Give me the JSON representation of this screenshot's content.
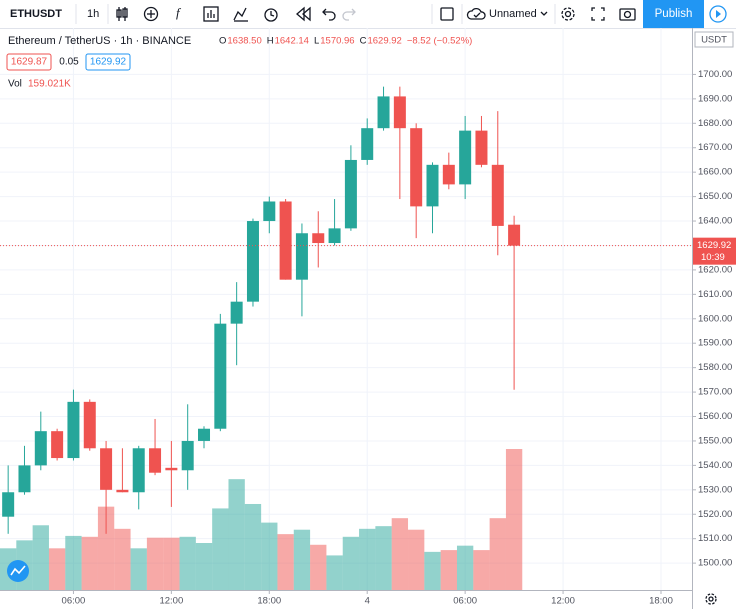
{
  "toolbar": {
    "symbol": "ETHUSDT",
    "interval": "1h",
    "layout_name": "Unnamed",
    "publish": "Publish"
  },
  "header": {
    "title": "Ethereum / TetherUS · 1h · BINANCE",
    "readout": [
      {
        "label": "O",
        "value": "1638.50"
      },
      {
        "label": "H",
        "value": "1642.14"
      },
      {
        "label": "L",
        "value": "1570.96"
      },
      {
        "label": "C",
        "value": "1629.92"
      }
    ],
    "change": "−8.52 (−0.52%)",
    "bid": "1629.87",
    "spread": "0.05",
    "ask": "1629.92",
    "volume_label": "Vol",
    "volume_value": "159.021K"
  },
  "chart_data": {
    "type": "candlestick",
    "currency": "USDT",
    "x": [
      2,
      3,
      4,
      5,
      6,
      7,
      8,
      9,
      10,
      11,
      12,
      13,
      14,
      15,
      16,
      17,
      18,
      19,
      20,
      21,
      22,
      23,
      24,
      25,
      26,
      27,
      28,
      29,
      30,
      31,
      32,
      33
    ],
    "open": [
      1519,
      1529,
      1540,
      1554,
      1543,
      1566,
      1547,
      1530,
      1529,
      1547,
      1539,
      1538,
      1550,
      1555,
      1598,
      1607,
      1640,
      1648,
      1616,
      1635,
      1631,
      1637,
      1665,
      1678,
      1691,
      1678,
      1646,
      1663,
      1655,
      1677,
      1663,
      1638.5
    ],
    "high": [
      1540,
      1548,
      1562,
      1555,
      1571,
      1567,
      1550,
      1547,
      1548,
      1559,
      1550,
      1565,
      1556,
      1602,
      1615,
      1641,
      1650,
      1649,
      1639,
      1644,
      1649,
      1671,
      1682,
      1695,
      1695,
      1680,
      1664,
      1668,
      1683,
      1683,
      1685,
      1642.14
    ],
    "low": [
      1512,
      1528,
      1538,
      1542,
      1542,
      1546,
      1512,
      1529,
      1522,
      1536,
      1523,
      1530,
      1547,
      1554,
      1581,
      1605,
      1635,
      1616,
      1601,
      1621,
      1630,
      1636,
      1663,
      1677,
      1649,
      1633,
      1635,
      1653,
      1649,
      1662,
      1626,
      1570.96
    ],
    "close": [
      1529,
      1540,
      1554,
      1543,
      1566,
      1547,
      1530,
      1529,
      1547,
      1537,
      1538,
      1550,
      1555,
      1598,
      1607,
      1640,
      1648,
      1616,
      1635,
      1631,
      1637,
      1665,
      1678,
      1691,
      1678,
      1646,
      1663,
      1655,
      1677,
      1663,
      1638,
      1629.92
    ],
    "volume": [
      47,
      56,
      73,
      47,
      61,
      60,
      94,
      69,
      47,
      59,
      59,
      60,
      53,
      92,
      125,
      97,
      76,
      63,
      68,
      51,
      39,
      60,
      69,
      72,
      81,
      68,
      43,
      45,
      50,
      45,
      81,
      159.021
    ],
    "up_color": "#26a69a",
    "down_color": "#ef5350",
    "xlim": [
      1.5,
      43.9
    ],
    "xticks": [
      {
        "value": 6,
        "label": "06:00"
      },
      {
        "value": 12,
        "label": "12:00"
      },
      {
        "value": 18,
        "label": "18:00"
      },
      {
        "value": 24,
        "label": "4"
      },
      {
        "value": 30,
        "label": "06:00"
      },
      {
        "value": 36,
        "label": "12:00"
      },
      {
        "value": 42,
        "label": "18:00"
      }
    ],
    "ylim": [
      1489.0,
      1719.0
    ],
    "yticks": [
      {
        "value": 1500,
        "label": "1500.00"
      },
      {
        "value": 1510,
        "label": "1510.00"
      },
      {
        "value": 1520,
        "label": "1520.00"
      },
      {
        "value": 1530,
        "label": "1530.00"
      },
      {
        "value": 1540,
        "label": "1540.00"
      },
      {
        "value": 1550,
        "label": "1550.00"
      },
      {
        "value": 1560,
        "label": "1560.00"
      },
      {
        "value": 1570,
        "label": "1570.00"
      },
      {
        "value": 1580,
        "label": "1580.00"
      },
      {
        "value": 1590,
        "label": "1590.00"
      },
      {
        "value": 1600,
        "label": "1600.00"
      },
      {
        "value": 1610,
        "label": "1610.00"
      },
      {
        "value": 1620,
        "label": "1620.00"
      },
      {
        "value": 1630,
        "label": "1630.00"
      },
      {
        "value": 1640,
        "label": "1640.00"
      },
      {
        "value": 1650,
        "label": "1650.00"
      },
      {
        "value": 1660,
        "label": "1660.00"
      },
      {
        "value": 1670,
        "label": "1670.00"
      },
      {
        "value": 1680,
        "label": "1680.00"
      },
      {
        "value": 1690,
        "label": "1690.00"
      },
      {
        "value": 1700,
        "label": "1700.00"
      }
    ],
    "last_price_label": "1629.92",
    "countdown": "10:39",
    "grid": true
  }
}
